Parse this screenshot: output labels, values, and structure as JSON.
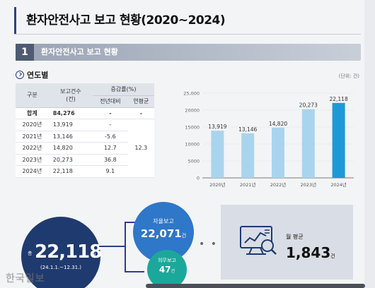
{
  "title": "환자안전사고 보고 현황(2020~2024)",
  "section": {
    "number": "1",
    "label": "환자안전사고 보고 현황"
  },
  "subheading": "연도별",
  "unit_note": "(단위: 건)",
  "table": {
    "headers": {
      "category": "구분",
      "reports": "보고건수",
      "reports_unit": "(건)",
      "growth": "증감률(%)",
      "yoy": "전년대비",
      "annual_avg": "연평균"
    },
    "rows": [
      {
        "label": "합계",
        "reports": "84,276",
        "yoy": "-",
        "avg": "-"
      },
      {
        "label": "2020년",
        "reports": "13,919",
        "yoy": "-"
      },
      {
        "label": "2021년",
        "reports": "13,146",
        "yoy": "-5.6"
      },
      {
        "label": "2022년",
        "reports": "14,820",
        "yoy": "12.7"
      },
      {
        "label": "2023년",
        "reports": "20,273",
        "yoy": "36.8"
      },
      {
        "label": "2024년",
        "reports": "22,118",
        "yoy": "9.1"
      }
    ],
    "annual_avg_merged": "12.3"
  },
  "chart_data": {
    "type": "bar",
    "categories": [
      "2020년",
      "2021년",
      "2022년",
      "2023년",
      "2024년"
    ],
    "values": [
      13919,
      13146,
      14820,
      20273,
      22118
    ],
    "value_labels": [
      "13,919",
      "13,146",
      "14,820",
      "20,273",
      "22,118"
    ],
    "yticks": [
      "0",
      "5000",
      "10000",
      "15000",
      "20000",
      "25,000"
    ],
    "ylim": [
      0,
      25000
    ],
    "colors": {
      "bar": "#a9d4ee",
      "highlight": "#1d9ad6"
    }
  },
  "summary": {
    "total_prefix": "총",
    "total_value": "22,118",
    "total_unit": "건",
    "total_period": "(24.1.1.~12.31.)",
    "voluntary_label": "자율보고",
    "voluntary_value": "22,071",
    "voluntary_unit": "건",
    "mandatory_label": "의무보고",
    "mandatory_value": "47",
    "mandatory_unit": "건",
    "dots": "• • •",
    "monthly_label": "월 평균",
    "monthly_value": "1,843",
    "monthly_unit": "건"
  },
  "watermark": "한국일보",
  "colors": {
    "navy": "#1f3a6e",
    "blue": "#2e77c9",
    "teal": "#1ba89a"
  }
}
